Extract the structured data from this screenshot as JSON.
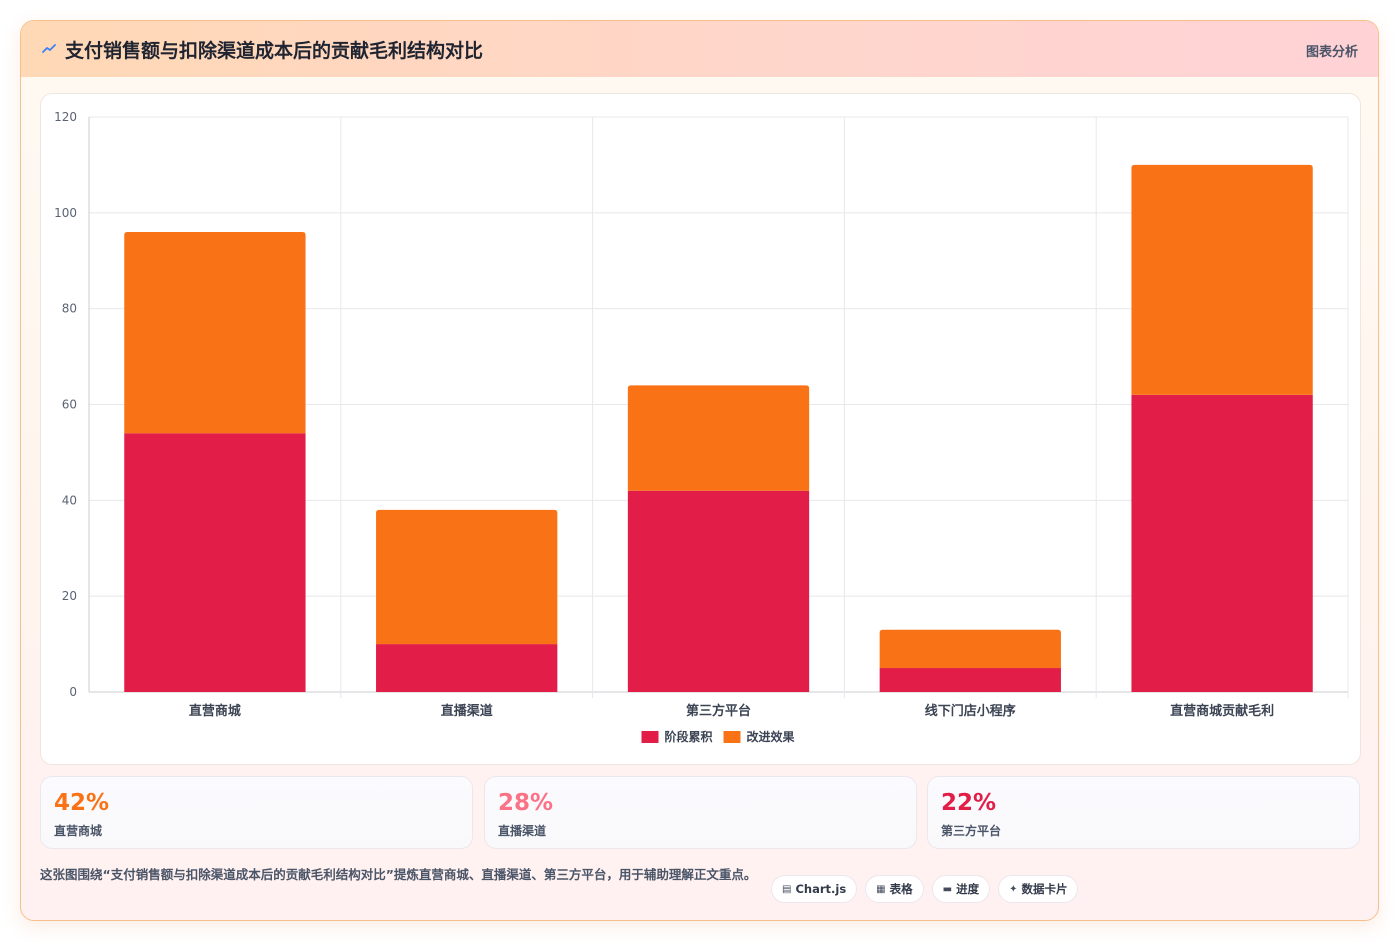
{
  "header": {
    "title": "支付销售额与扣除渠道成本后的贡献毛利结构对比",
    "tag": "图表分析"
  },
  "chart_data": {
    "type": "bar",
    "stacked": true,
    "categories": [
      "直营商城",
      "直播渠道",
      "第三方平台",
      "线下门店小程序",
      "直营商城贡献毛利"
    ],
    "series": [
      {
        "name": "阶段累积",
        "color": "#e11d48",
        "values": [
          54,
          10,
          42,
          5,
          62
        ]
      },
      {
        "name": "改进效果",
        "color": "#f97316",
        "values": [
          42,
          28,
          22,
          8,
          48
        ]
      }
    ],
    "ylim": [
      0,
      120
    ],
    "yticks": [
      0,
      20,
      40,
      60,
      80,
      100,
      120
    ],
    "grid": true,
    "legend": "bottom"
  },
  "stats": [
    {
      "value": "42%",
      "label": "直营商城",
      "color": "#f97316"
    },
    {
      "value": "28%",
      "label": "直播渠道",
      "color": "#fb7185"
    },
    {
      "value": "22%",
      "label": "第三方平台",
      "color": "#e11d48"
    }
  ],
  "footnote": "这张图围绕“支付销售额与扣除渠道成本后的贡献毛利结构对比”提炼直营商城、直播渠道、第三方平台，用于辅助理解正文重点。",
  "chips": [
    {
      "icon": "chart-icon",
      "glyph": "▤",
      "label": "Chart.js"
    },
    {
      "icon": "table-icon",
      "glyph": "▦",
      "label": "表格"
    },
    {
      "icon": "progress-icon",
      "glyph": "▬",
      "label": "进度"
    },
    {
      "icon": "sparkle-icon",
      "glyph": "✦",
      "label": "数据卡片"
    }
  ]
}
